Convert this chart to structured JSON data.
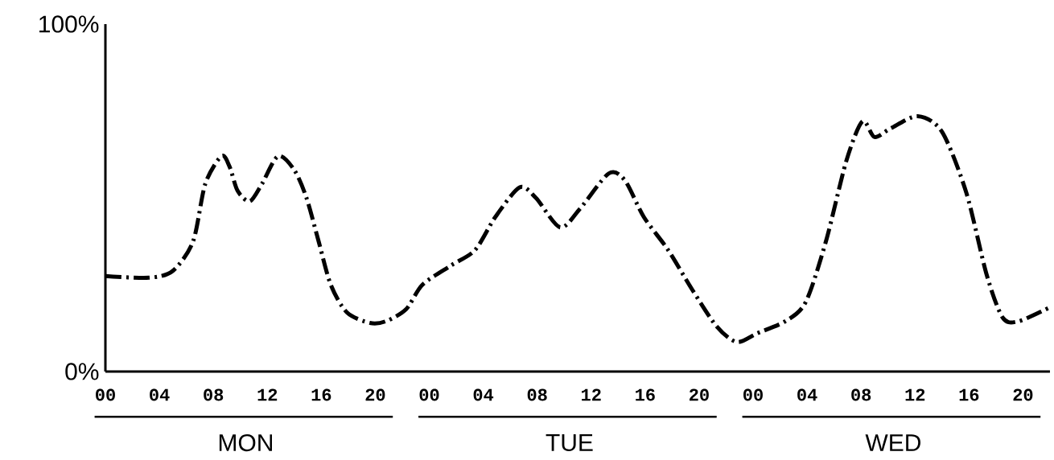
{
  "chart_data": {
    "type": "line",
    "x": [
      0,
      3.2,
      5,
      6.5,
      7.4,
      8.6,
      9.2,
      9.8,
      10.7,
      11.6,
      12.8,
      14,
      14.9,
      15.8,
      16.7,
      17.9,
      19.6,
      20.8,
      22.3,
      23.5,
      25.6,
      27.4,
      28.9,
      30.7,
      31.9,
      33.7,
      35.2,
      37.3,
      38.5,
      39.9,
      41.7,
      43.5,
      45.3,
      46.8,
      48.3,
      50.4,
      51.9,
      53.4,
      54.9,
      56.1,
      57,
      58.2,
      60.2,
      62,
      63.8,
      65.3,
      66.5,
      67.7,
      70
    ],
    "series": [
      {
        "color": "#000000",
        "values": [
          27.5,
          27,
          29,
          37.5,
          54,
          62,
          59,
          52,
          49,
          54,
          62,
          58,
          50,
          37.5,
          25,
          17,
          14,
          14.5,
          18,
          25,
          30.5,
          35,
          44.5,
          53,
          50,
          41.5,
          47,
          57,
          55,
          44.5,
          35,
          23.5,
          13,
          8.5,
          11,
          14.5,
          20,
          37.5,
          60.5,
          72,
          67.5,
          70,
          73.5,
          69,
          51.5,
          28,
          15.5,
          14.5,
          18.5
        ]
      }
    ],
    "xlim": [
      0,
      70
    ],
    "ylim": [
      0,
      100
    ],
    "xticks": [
      {
        "value": 0,
        "label": "00"
      },
      {
        "value": 4,
        "label": "04"
      },
      {
        "value": 8,
        "label": "08"
      },
      {
        "value": 12,
        "label": "12"
      },
      {
        "value": 16,
        "label": "16"
      },
      {
        "value": 20,
        "label": "20"
      },
      {
        "value": 24,
        "label": "00"
      },
      {
        "value": 28,
        "label": "04"
      },
      {
        "value": 32,
        "label": "08"
      },
      {
        "value": 36,
        "label": "12"
      },
      {
        "value": 40,
        "label": "16"
      },
      {
        "value": 44,
        "label": "20"
      },
      {
        "value": 48,
        "label": "00"
      },
      {
        "value": 52,
        "label": "04"
      },
      {
        "value": 56,
        "label": "08"
      },
      {
        "value": 60,
        "label": "12"
      },
      {
        "value": 64,
        "label": "16"
      },
      {
        "value": 68,
        "label": "20"
      }
    ],
    "yticks": [
      {
        "value": 0,
        "label": "0%"
      },
      {
        "value": 100,
        "label": "100%"
      }
    ],
    "annotations": [
      "MON",
      "TUE",
      "WED"
    ],
    "line_style": "dashdot",
    "marker": "none",
    "grid": false
  }
}
